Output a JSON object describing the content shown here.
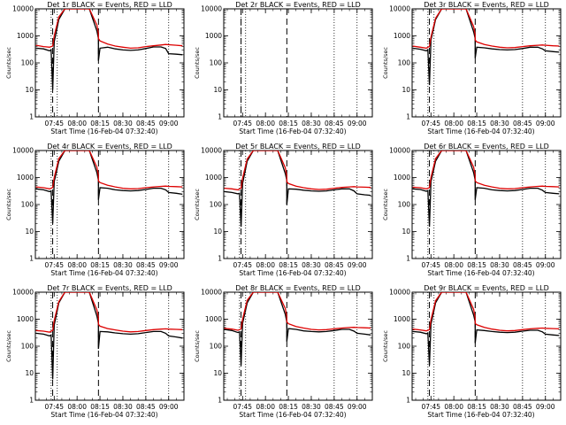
{
  "chart_data": {
    "type": "line",
    "layout": "3x3 grid",
    "x_axis": {
      "label": "Start Time (16-Feb-04 07:32:40)",
      "range": [
        "07:32:40",
        "09:10"
      ],
      "ticks": [
        "07:45",
        "08:00",
        "08:15",
        "08:30",
        "08:45",
        "09:00"
      ]
    },
    "y_axis": {
      "label": "Counts/sec",
      "scale": "log",
      "range": [
        1,
        10000
      ],
      "ticks": [
        "1",
        "10",
        "100",
        "1000",
        "10000"
      ]
    },
    "series_legend": "BLACK = Events, RED = LLD",
    "series_colors": {
      "events": "#000000",
      "lld": "#dd0000"
    },
    "panels": [
      {
        "title": "Det 1r  BLACK = Events, RED = LLD",
        "dotted_lines": [
          "07:43",
          "07:47",
          "08:45",
          "09:00"
        ],
        "dashed_lines": [
          "07:44",
          "08:14"
        ],
        "x": [
          "07:33",
          "07:38",
          "07:42",
          "07:43",
          "07:44",
          "07:45",
          "07:48",
          "07:52",
          "08:08",
          "08:13",
          "08:14",
          "08:14",
          "08:15",
          "08:20",
          "08:25",
          "08:30",
          "08:35",
          "08:40",
          "08:45",
          "08:50",
          "08:55",
          "08:58",
          "09:00",
          "09:05",
          "09:09"
        ],
        "events": [
          350,
          330,
          280,
          300,
          10,
          600,
          4000,
          10000,
          10000,
          1500,
          800,
          120,
          350,
          380,
          330,
          300,
          290,
          300,
          340,
          390,
          390,
          340,
          220,
          210,
          200
        ],
        "lld": [
          450,
          400,
          380,
          400,
          420,
          1000,
          5000,
          10000,
          10000,
          2500,
          1200,
          800,
          650,
          500,
          420,
          380,
          350,
          360,
          400,
          430,
          460,
          480,
          470,
          450,
          430
        ]
      },
      {
        "title": "Det 2r  BLACK = Events, RED = LLD",
        "dotted_lines": [
          "07:44",
          "07:47",
          "08:45",
          "09:00"
        ],
        "dashed_lines": [
          "07:44",
          "08:14"
        ],
        "x": [],
        "events": [],
        "lld": []
      },
      {
        "title": "Det 3r  BLACK = Events, RED = LLD",
        "dotted_lines": [
          "07:43",
          "07:47",
          "08:45",
          "09:00"
        ],
        "dashed_lines": [
          "07:44",
          "08:14"
        ],
        "x": [
          "07:33",
          "07:38",
          "07:42",
          "07:43",
          "07:44",
          "07:45",
          "07:48",
          "07:52",
          "08:08",
          "08:13",
          "08:14",
          "08:14",
          "08:15",
          "08:20",
          "08:25",
          "08:30",
          "08:35",
          "08:40",
          "08:45",
          "08:50",
          "08:55",
          "08:58",
          "09:00",
          "09:05",
          "09:09"
        ],
        "events": [
          350,
          320,
          280,
          300,
          15,
          700,
          4000,
          10000,
          10000,
          1400,
          800,
          150,
          380,
          360,
          330,
          310,
          300,
          310,
          340,
          380,
          380,
          330,
          280,
          260,
          250
        ],
        "lld": [
          420,
          380,
          350,
          380,
          400,
          900,
          4500,
          10000,
          10000,
          2200,
          1100,
          700,
          600,
          480,
          420,
          380,
          360,
          370,
          400,
          430,
          450,
          460,
          450,
          430,
          420
        ]
      },
      {
        "title": "Det 4r  BLACK = Events, RED = LLD",
        "dotted_lines": [
          "07:43",
          "07:47",
          "08:45",
          "09:00"
        ],
        "dashed_lines": [
          "07:44",
          "08:14"
        ],
        "x": [
          "07:33",
          "07:38",
          "07:42",
          "07:43",
          "07:44",
          "07:45",
          "07:48",
          "07:52",
          "08:08",
          "08:13",
          "08:14",
          "08:14",
          "08:15",
          "08:20",
          "08:25",
          "08:30",
          "08:35",
          "08:40",
          "08:45",
          "08:50",
          "08:55",
          "08:58",
          "09:00",
          "09:05",
          "09:09"
        ],
        "events": [
          380,
          350,
          300,
          320,
          20,
          700,
          4000,
          10000,
          10000,
          1500,
          800,
          150,
          420,
          400,
          350,
          330,
          320,
          330,
          360,
          400,
          400,
          350,
          280,
          260,
          240
        ],
        "lld": [
          450,
          420,
          380,
          400,
          430,
          1000,
          5000,
          10000,
          10000,
          2400,
          1200,
          750,
          650,
          520,
          450,
          400,
          380,
          390,
          420,
          450,
          470,
          480,
          470,
          460,
          450
        ]
      },
      {
        "title": "Det 5r  BLACK = Events, RED = LLD",
        "dotted_lines": [
          "07:43",
          "07:47",
          "08:45",
          "09:00"
        ],
        "dashed_lines": [
          "07:44",
          "08:14"
        ],
        "x": [
          "07:33",
          "07:38",
          "07:42",
          "07:43",
          "07:44",
          "07:45",
          "07:48",
          "07:52",
          "08:08",
          "08:13",
          "08:14",
          "08:14",
          "08:15",
          "08:20",
          "08:25",
          "08:30",
          "08:35",
          "08:40",
          "08:45",
          "08:50",
          "08:55",
          "08:58",
          "09:00",
          "09:05",
          "09:09"
        ],
        "events": [
          300,
          280,
          250,
          260,
          15,
          600,
          4000,
          10000,
          10000,
          1400,
          800,
          100,
          380,
          370,
          340,
          320,
          310,
          320,
          350,
          380,
          380,
          320,
          250,
          230,
          220
        ],
        "lld": [
          400,
          380,
          350,
          380,
          400,
          950,
          4800,
          10000,
          10000,
          2300,
          1100,
          700,
          600,
          480,
          420,
          380,
          360,
          370,
          400,
          430,
          450,
          460,
          450,
          440,
          430
        ]
      },
      {
        "title": "Det 6r  BLACK = Events, RED = LLD",
        "dotted_lines": [
          "07:43",
          "07:47",
          "08:45",
          "09:00"
        ],
        "dashed_lines": [
          "07:44",
          "08:14"
        ],
        "x": [
          "07:33",
          "07:38",
          "07:42",
          "07:43",
          "07:44",
          "07:45",
          "07:48",
          "07:52",
          "08:08",
          "08:13",
          "08:14",
          "08:14",
          "08:15",
          "08:20",
          "08:25",
          "08:30",
          "08:35",
          "08:40",
          "08:45",
          "08:50",
          "08:55",
          "08:58",
          "09:00",
          "09:05",
          "09:09"
        ],
        "events": [
          380,
          360,
          310,
          330,
          15,
          700,
          4000,
          10000,
          10000,
          1500,
          800,
          150,
          420,
          400,
          350,
          330,
          320,
          330,
          360,
          400,
          400,
          340,
          280,
          260,
          250
        ],
        "lld": [
          440,
          420,
          380,
          400,
          420,
          1000,
          5000,
          10000,
          10000,
          2400,
          1200,
          750,
          650,
          520,
          450,
          400,
          380,
          390,
          420,
          450,
          470,
          480,
          470,
          460,
          450
        ]
      },
      {
        "title": "Det 7r  BLACK = Events, RED = LLD",
        "dotted_lines": [
          "07:43",
          "07:47",
          "08:45",
          "09:00"
        ],
        "dashed_lines": [
          "07:44",
          "08:14"
        ],
        "x": [
          "07:33",
          "07:38",
          "07:42",
          "07:43",
          "07:44",
          "07:45",
          "07:48",
          "07:52",
          "08:08",
          "08:13",
          "08:14",
          "08:14",
          "08:15",
          "08:20",
          "08:25",
          "08:30",
          "08:35",
          "08:40",
          "08:45",
          "08:50",
          "08:55",
          "08:58",
          "09:00",
          "09:05",
          "09:09"
        ],
        "events": [
          300,
          280,
          240,
          260,
          6,
          600,
          4000,
          10000,
          10000,
          1300,
          700,
          80,
          350,
          340,
          310,
          290,
          280,
          290,
          320,
          350,
          350,
          300,
          240,
          220,
          200
        ],
        "lld": [
          380,
          360,
          330,
          360,
          380,
          900,
          4500,
          10000,
          10000,
          2200,
          1100,
          650,
          550,
          450,
          400,
          360,
          340,
          350,
          380,
          410,
          430,
          440,
          430,
          420,
          410
        ]
      },
      {
        "title": "Det 8r  BLACK = Events, RED = LLD",
        "dotted_lines": [
          "07:43",
          "07:47",
          "08:45",
          "09:00"
        ],
        "dashed_lines": [
          "07:44",
          "08:14"
        ],
        "x": [
          "07:33",
          "07:38",
          "07:42",
          "07:43",
          "07:44",
          "07:45",
          "07:48",
          "07:52",
          "08:08",
          "08:13",
          "08:14",
          "08:14",
          "08:15",
          "08:20",
          "08:25",
          "08:30",
          "08:35",
          "08:40",
          "08:45",
          "08:50",
          "08:55",
          "08:58",
          "09:00",
          "09:05",
          "09:09"
        ],
        "events": [
          420,
          380,
          320,
          340,
          20,
          700,
          4000,
          10000,
          10000,
          1500,
          800,
          150,
          450,
          420,
          370,
          350,
          340,
          350,
          380,
          420,
          420,
          360,
          300,
          280,
          260
        ],
        "lld": [
          460,
          430,
          390,
          410,
          440,
          1000,
          5000,
          10000,
          10000,
          2500,
          1200,
          800,
          680,
          540,
          470,
          420,
          400,
          410,
          440,
          470,
          490,
          500,
          490,
          480,
          470
        ]
      },
      {
        "title": "Det 9r  BLACK = Events, RED = LLD",
        "dotted_lines": [
          "07:43",
          "07:47",
          "08:45",
          "09:00"
        ],
        "dashed_lines": [
          "07:44",
          "08:14"
        ],
        "x": [
          "07:33",
          "07:38",
          "07:42",
          "07:43",
          "07:44",
          "07:45",
          "07:48",
          "07:52",
          "08:08",
          "08:13",
          "08:14",
          "08:14",
          "08:15",
          "08:20",
          "08:25",
          "08:30",
          "08:35",
          "08:40",
          "08:45",
          "08:50",
          "08:55",
          "08:58",
          "09:00",
          "09:05",
          "09:09"
        ],
        "events": [
          350,
          330,
          290,
          300,
          20,
          650,
          4000,
          10000,
          10000,
          1400,
          800,
          130,
          400,
          380,
          350,
          330,
          320,
          330,
          360,
          390,
          390,
          340,
          280,
          260,
          250
        ],
        "lld": [
          430,
          400,
          370,
          390,
          410,
          950,
          4800,
          10000,
          10000,
          2300,
          1100,
          700,
          620,
          500,
          430,
          390,
          370,
          380,
          410,
          440,
          460,
          470,
          460,
          450,
          440
        ]
      }
    ]
  }
}
